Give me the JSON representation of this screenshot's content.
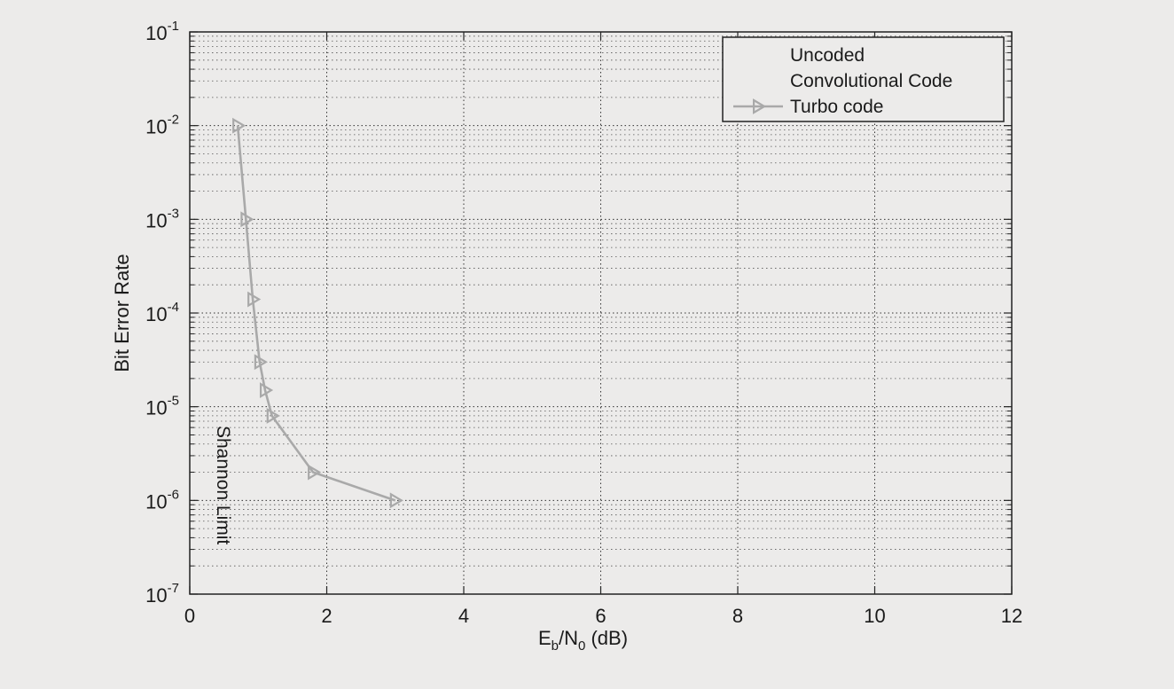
{
  "chart_data": {
    "type": "line",
    "title": "",
    "xlabel_main": "E",
    "xlabel_sub1": "b",
    "xlabel_mid": "/N",
    "xlabel_sub2": "0",
    "xlabel_tail": " (dB)",
    "ylabel": "Bit Error Rate",
    "xlim": [
      0,
      12
    ],
    "ylim": [
      1e-07,
      0.1
    ],
    "yscale": "log",
    "grid": true,
    "legend_position": "top-right",
    "x_ticks": [
      0,
      2,
      4,
      6,
      8,
      10,
      12
    ],
    "y_ticks": [
      {
        "value": 0.1,
        "base": "10",
        "exp": "-1"
      },
      {
        "value": 0.01,
        "base": "10",
        "exp": "-2"
      },
      {
        "value": 0.001,
        "base": "10",
        "exp": "-3"
      },
      {
        "value": 0.0001,
        "base": "10",
        "exp": "-4"
      },
      {
        "value": 1e-05,
        "base": "10",
        "exp": "-5"
      },
      {
        "value": 1e-06,
        "base": "10",
        "exp": "-6"
      },
      {
        "value": 1e-07,
        "base": "10",
        "exp": "-7"
      }
    ],
    "legend": [
      "Uncoded",
      "Convolutional Code",
      "Turbo code"
    ],
    "series": [
      {
        "name": "Turbo code",
        "color": "#a9a9a9",
        "marker": "triangle-right",
        "x": [
          0.7,
          0.82,
          0.92,
          1.02,
          1.1,
          1.2,
          1.8,
          3.0
        ],
        "y": [
          0.01,
          0.001,
          0.00014,
          3e-05,
          1.5e-05,
          8e-06,
          2e-06,
          1e-06
        ]
      }
    ],
    "annotations": [
      {
        "text": "Shannon Limit",
        "x": 0.4,
        "y": 4e-06,
        "rotation": 90
      }
    ]
  }
}
